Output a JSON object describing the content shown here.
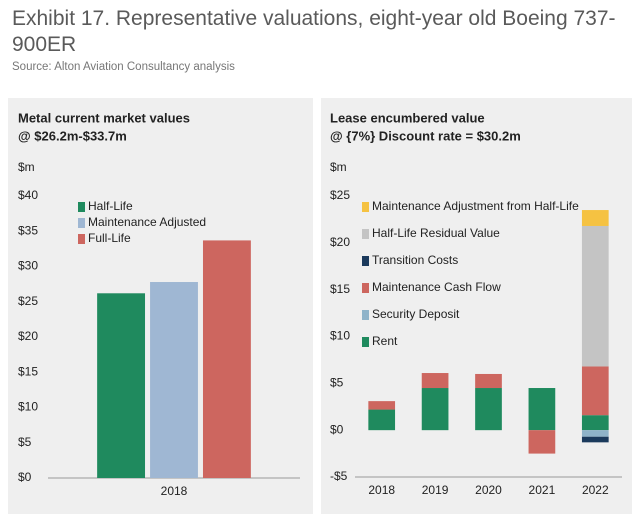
{
  "header": {
    "title": "Exhibit 17. Representative valuations, eight-year old Boeing 737-900ER",
    "source": "Source: Alton Aviation Consultancy analysis"
  },
  "chart_data": [
    {
      "type": "bar",
      "title": "Metal current market values",
      "subtitle": "@ $26.2m-$33.7m",
      "ylabel": "$m",
      "categories": [
        "2018"
      ],
      "series": [
        {
          "name": "Half-Life",
          "color": "#1f8a5e",
          "values": [
            26.2
          ]
        },
        {
          "name": "Maintenance Adjusted",
          "color": "#9fb7d3",
          "values": [
            27.8
          ]
        },
        {
          "name": "Full-Life",
          "color": "#cd665f",
          "values": [
            33.7
          ]
        }
      ],
      "ylim": [
        0,
        40
      ],
      "yticks": [
        {
          "value": 0,
          "label": "$0"
        },
        {
          "value": 5,
          "label": "$5"
        },
        {
          "value": 10,
          "label": "$10"
        },
        {
          "value": 15,
          "label": "$15"
        },
        {
          "value": 20,
          "label": "$20"
        },
        {
          "value": 25,
          "label": "$25"
        },
        {
          "value": 30,
          "label": "$30"
        },
        {
          "value": 35,
          "label": "$35"
        },
        {
          "value": 40,
          "label": "$40"
        }
      ],
      "grid": false
    },
    {
      "type": "stacked_bar",
      "title": "Lease encumbered value",
      "subtitle": "@ {7%} Discount rate = $30.2m",
      "ylabel": "$m",
      "categories": [
        "2018",
        "2019",
        "2020",
        "2021",
        "2022"
      ],
      "series": [
        {
          "name": "Rent",
          "color": "#1f8a5e",
          "values": [
            2.2,
            4.5,
            4.5,
            4.5,
            1.6
          ]
        },
        {
          "name": "Security Deposit",
          "color": "#8fb3c9",
          "values": [
            null,
            null,
            null,
            null,
            -0.7
          ]
        },
        {
          "name": "Maintenance Cash Flow",
          "color": "#cd665f",
          "values": [
            0.9,
            1.6,
            1.5,
            -2.5,
            5.2
          ]
        },
        {
          "name": "Transition Costs",
          "color": "#1b3a5c",
          "values": [
            null,
            null,
            null,
            null,
            -0.6
          ]
        },
        {
          "name": "Half-Life Residual Value",
          "color": "#c4c4c4",
          "values": [
            null,
            null,
            null,
            null,
            15
          ]
        },
        {
          "name": "Maintenance Adjustment from Half-Life",
          "color": "#f5c242",
          "values": [
            null,
            null,
            null,
            null,
            1.7
          ]
        }
      ],
      "ylim": [
        -5,
        25
      ],
      "yticks": [
        {
          "value": -5,
          "label": "-$5"
        },
        {
          "value": 0,
          "label": "$0"
        },
        {
          "value": 5,
          "label": "$5"
        },
        {
          "value": 10,
          "label": "$10"
        },
        {
          "value": 15,
          "label": "$15"
        },
        {
          "value": 20,
          "label": "$20"
        },
        {
          "value": 25,
          "label": "$25"
        }
      ],
      "grid": false
    }
  ]
}
